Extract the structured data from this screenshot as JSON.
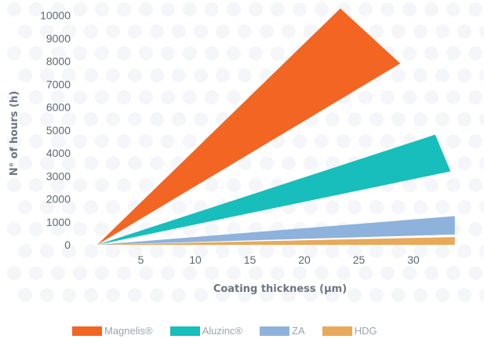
{
  "chart_data": {
    "type": "area",
    "title": "",
    "xlabel": "Coating thickness (µm)",
    "ylabel": "N° of hours (h)",
    "xlim": [
      0,
      35
    ],
    "ylim": [
      0,
      10000
    ],
    "x_ticks": [
      5,
      10,
      15,
      20,
      25,
      30
    ],
    "x_tick_labels": [
      "5",
      "10",
      "15",
      "20",
      "25",
      "30"
    ],
    "y_ticks": [
      0,
      1000,
      2000,
      3000,
      4000,
      5000,
      6000,
      7000,
      8000,
      9000,
      10000
    ],
    "y_tick_labels": [
      "0",
      "1000",
      "2000",
      "3000",
      "4000",
      "5000",
      "6000",
      "7000",
      "8000",
      "9000",
      "10000"
    ],
    "grid": false,
    "legend_position": "bottom",
    "series": [
      {
        "name": "Magnelis®",
        "color": "#f26522",
        "start": [
          1,
          0
        ],
        "upper_end": [
          23.3,
          10300
        ],
        "lower_end": [
          28.8,
          7900
        ]
      },
      {
        "name": "Aluzinc®",
        "color": "#17bebb",
        "start": [
          1,
          0
        ],
        "upper_end": [
          32,
          4800
        ],
        "lower_end": [
          33.4,
          3200
        ]
      },
      {
        "name": "ZA",
        "color": "#8eb2dc",
        "start": [
          1,
          0
        ],
        "upper_end": [
          33.8,
          1250
        ],
        "lower_end": [
          33.8,
          450
        ]
      },
      {
        "name": "HDG",
        "color": "#e8a95a",
        "start": [
          1,
          0
        ],
        "upper_end": [
          33.8,
          340
        ],
        "lower_end": [
          33.8,
          0
        ]
      }
    ]
  }
}
